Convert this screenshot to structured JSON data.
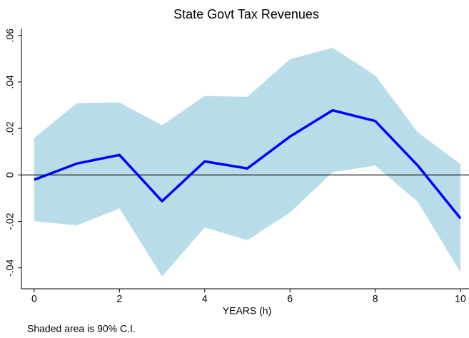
{
  "chart_data": {
    "type": "line",
    "title": "State Govt Tax Revenues",
    "x_label": "YEARS (h)",
    "note": "Shaded area is 90% C.I.",
    "x": [
      0,
      1,
      2,
      3,
      4,
      5,
      6,
      7,
      8,
      9,
      10
    ],
    "series": [
      {
        "color": "#0000ff",
        "values": [
          -0.0021,
          0.0049,
          0.0086,
          -0.0113,
          0.0058,
          0.0028,
          0.0165,
          0.0278,
          0.0232,
          0.004,
          -0.0187
        ],
        "ci_upper": [
          0.0159,
          0.0309,
          0.0312,
          0.0214,
          0.034,
          0.0336,
          0.0498,
          0.0547,
          0.0428,
          0.0183,
          0.0046
        ],
        "ci_lower": [
          -0.0199,
          -0.0217,
          -0.0144,
          -0.0437,
          -0.0226,
          -0.0281,
          -0.0162,
          0.0012,
          0.004,
          -0.0116,
          -0.0419
        ],
        "ci_color": "#b8dde8"
      }
    ],
    "xlim": [
      -0.3,
      10.2
    ],
    "ylim": [
      -0.049,
      0.063
    ],
    "xticks": [
      0,
      2,
      4,
      6,
      8,
      10
    ],
    "yticks": [
      {
        "value": -0.04,
        "label": "-.04"
      },
      {
        "value": -0.02,
        "label": "-.02"
      },
      0,
      {
        "value": 0.02,
        "label": ".02"
      },
      {
        "value": 0.04,
        "label": ".04"
      },
      {
        "value": 0.06,
        "label": ".06"
      }
    ],
    "zero_line": true
  }
}
